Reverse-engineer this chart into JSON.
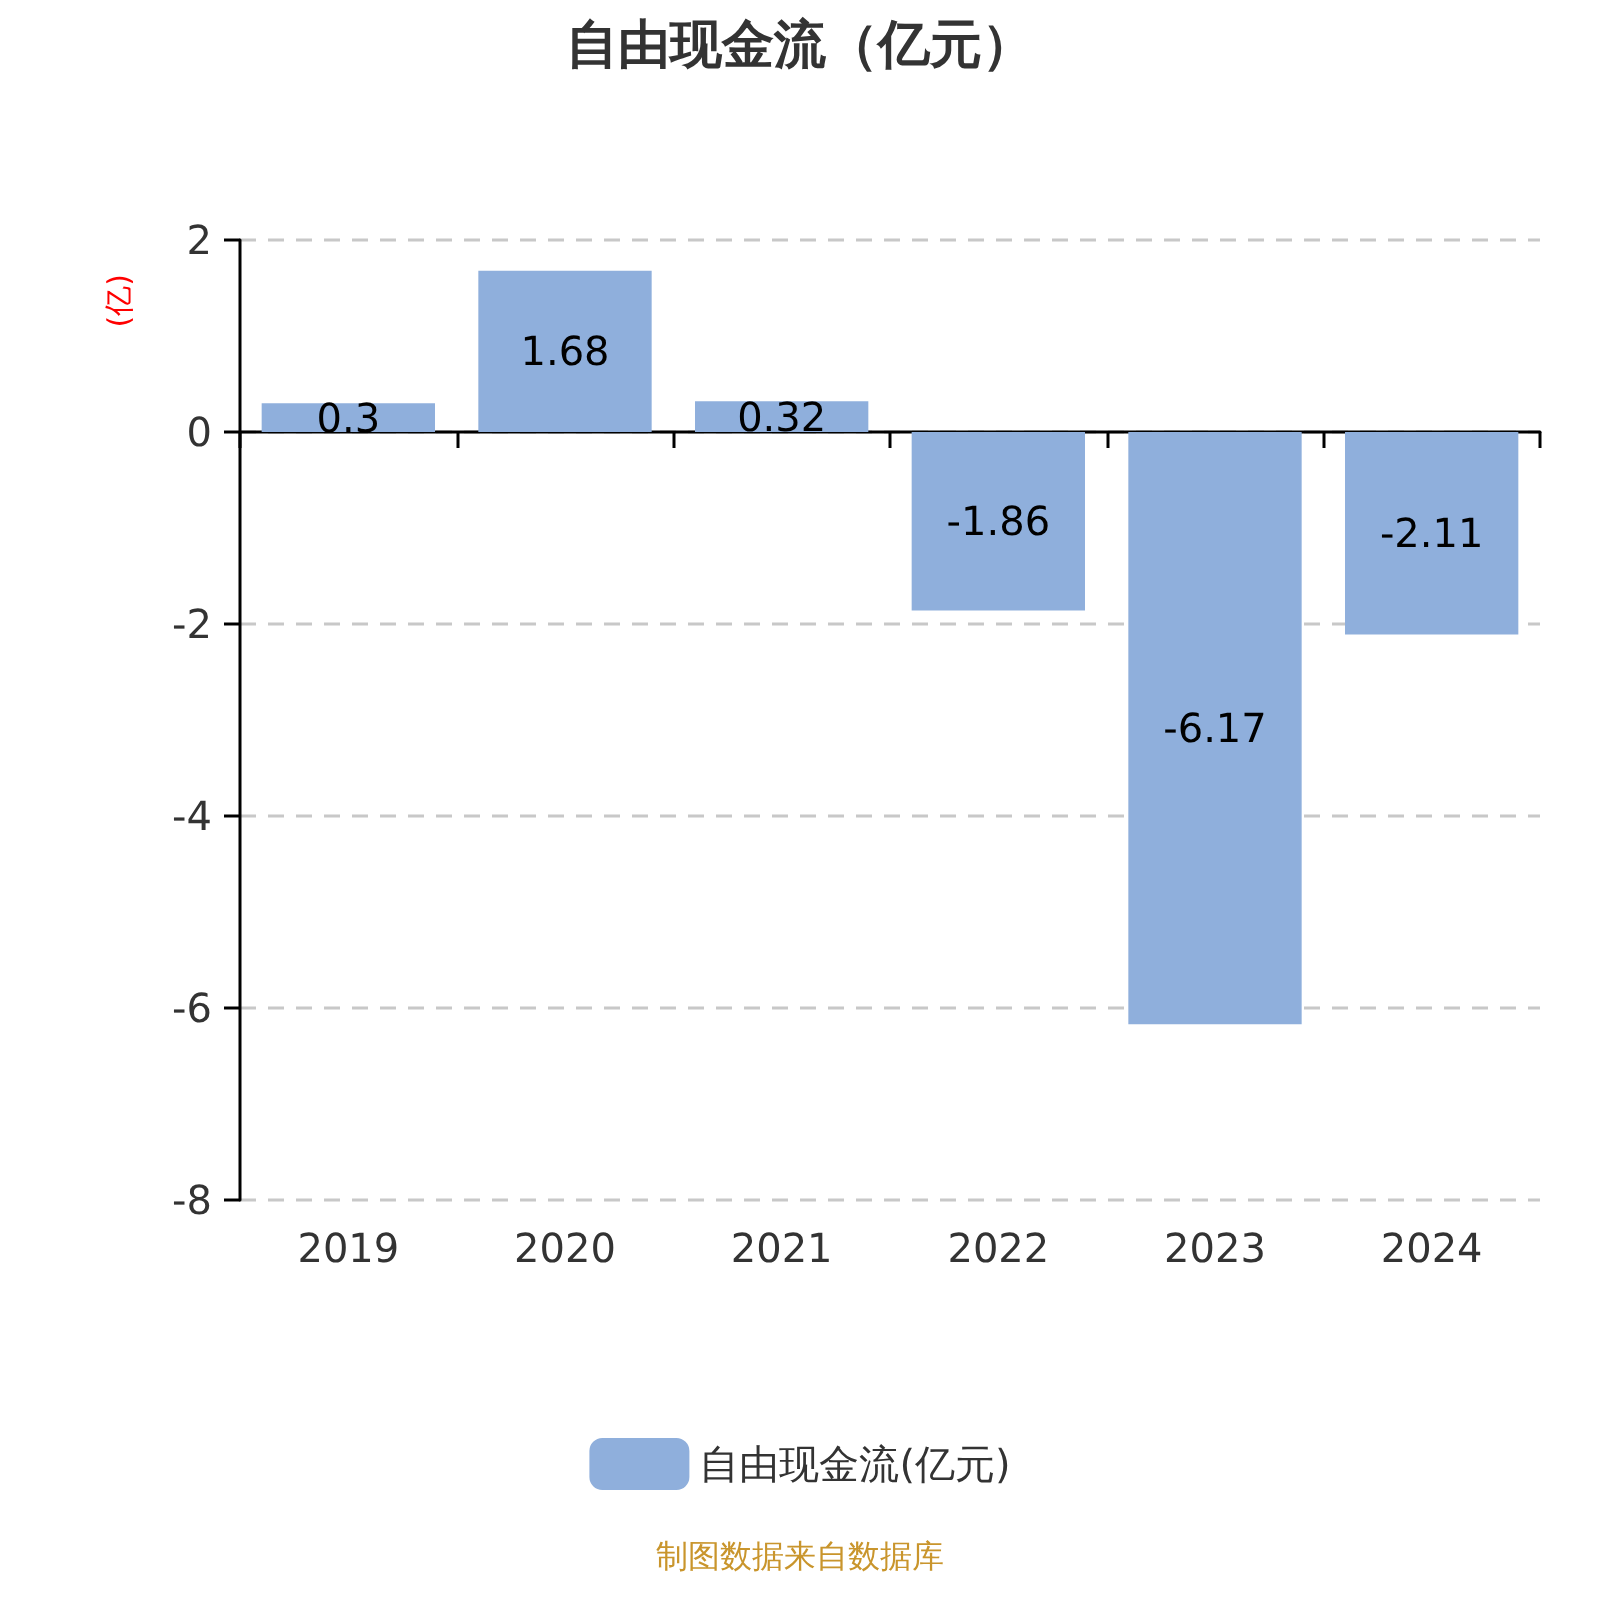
{
  "chart_data": {
    "type": "bar",
    "title": "自由现金流（亿元）",
    "ylabel": "(亿)",
    "categories": [
      "2019",
      "2020",
      "2021",
      "2022",
      "2023",
      "2024"
    ],
    "series": [
      {
        "name": "自由现金流(亿元)",
        "color": "#8fafdc",
        "values": [
          0.3,
          1.68,
          0.32,
          -1.86,
          -6.17,
          -2.11
        ]
      }
    ],
    "ylim": [
      -8,
      2
    ],
    "yticks": [
      -8,
      -6,
      -4,
      -2,
      0,
      2
    ],
    "grid": "y",
    "legend": "bottom",
    "data_labels": true,
    "annotations": [
      "制图数据来自数据库"
    ]
  }
}
